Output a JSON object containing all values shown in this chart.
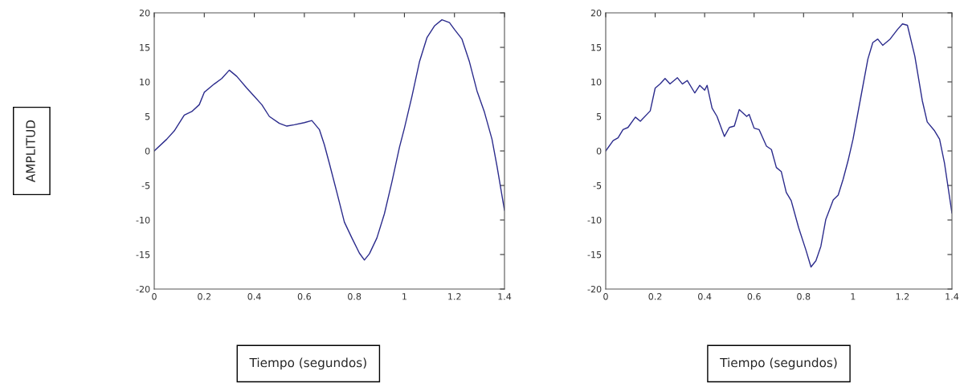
{
  "chart_data": [
    {
      "type": "line",
      "ylabel": "AMPLITUD",
      "xlabel": "Tiempo (segundos)",
      "xlim": [
        0,
        1.4
      ],
      "ylim": [
        -20,
        20
      ],
      "xticks": [
        0,
        0.2,
        0.4,
        0.6,
        0.8,
        1,
        1.2,
        1.4
      ],
      "yticks": [
        -20,
        -15,
        -10,
        -5,
        0,
        5,
        10,
        15,
        20
      ],
      "grid": false,
      "x": [
        0,
        0.05,
        0.08,
        0.12,
        0.15,
        0.18,
        0.2,
        0.24,
        0.27,
        0.3,
        0.33,
        0.37,
        0.4,
        0.43,
        0.46,
        0.5,
        0.53,
        0.56,
        0.6,
        0.63,
        0.66,
        0.68,
        0.7,
        0.73,
        0.76,
        0.79,
        0.82,
        0.84,
        0.86,
        0.89,
        0.92,
        0.95,
        0.98,
        1.0,
        1.03,
        1.06,
        1.09,
        1.12,
        1.15,
        1.18,
        1.2,
        1.23,
        1.26,
        1.29,
        1.32,
        1.35,
        1.37,
        1.4
      ],
      "series": [
        {
          "color": "#2b2b8c",
          "values": [
            0,
            1.7,
            2.9,
            5.2,
            5.7,
            6.7,
            8.5,
            9.7,
            10.5,
            11.7,
            10.8,
            9.1,
            7.9,
            6.7,
            5.0,
            4.0,
            3.6,
            3.8,
            4.1,
            4.4,
            3.1,
            0.9,
            -1.8,
            -6.0,
            -10.3,
            -12.6,
            -14.8,
            -15.8,
            -14.9,
            -12.6,
            -9.1,
            -4.5,
            0.5,
            3.3,
            7.9,
            12.9,
            16.4,
            18.1,
            19.0,
            18.6,
            17.6,
            16.2,
            12.9,
            8.7,
            5.6,
            1.7,
            -2.2,
            -8.6
          ]
        }
      ]
    },
    {
      "type": "line",
      "xlabel": "Tiempo (segundos)",
      "xlim": [
        0,
        1.4
      ],
      "ylim": [
        -20,
        20
      ],
      "xticks": [
        0,
        0.2,
        0.4,
        0.6,
        0.8,
        1,
        1.2,
        1.4
      ],
      "yticks": [
        -20,
        -15,
        -10,
        -5,
        0,
        5,
        10,
        15,
        20
      ],
      "grid": false,
      "x": [
        0,
        0.03,
        0.05,
        0.07,
        0.09,
        0.12,
        0.14,
        0.18,
        0.2,
        0.22,
        0.24,
        0.26,
        0.29,
        0.31,
        0.33,
        0.36,
        0.38,
        0.4,
        0.41,
        0.43,
        0.45,
        0.48,
        0.5,
        0.52,
        0.54,
        0.57,
        0.58,
        0.6,
        0.62,
        0.65,
        0.67,
        0.69,
        0.71,
        0.73,
        0.75,
        0.78,
        0.81,
        0.83,
        0.85,
        0.87,
        0.89,
        0.92,
        0.94,
        0.96,
        0.98,
        1.0,
        1.03,
        1.06,
        1.08,
        1.1,
        1.12,
        1.15,
        1.18,
        1.2,
        1.22,
        1.25,
        1.28,
        1.3,
        1.33,
        1.35,
        1.37,
        1.4
      ],
      "series": [
        {
          "color": "#2b2b8c",
          "values": [
            0,
            1.5,
            1.9,
            3.1,
            3.4,
            4.9,
            4.3,
            5.8,
            9.1,
            9.7,
            10.5,
            9.7,
            10.6,
            9.7,
            10.2,
            8.4,
            9.5,
            8.8,
            9.5,
            6.2,
            5.0,
            2.1,
            3.4,
            3.6,
            6.0,
            5.0,
            5.3,
            3.3,
            3.1,
            0.7,
            0.2,
            -2.4,
            -3.0,
            -6.0,
            -7.2,
            -11.1,
            -14.4,
            -16.8,
            -15.9,
            -13.8,
            -9.9,
            -7.1,
            -6.4,
            -4.1,
            -1.4,
            1.7,
            7.5,
            13.3,
            15.7,
            16.2,
            15.3,
            16.2,
            17.6,
            18.4,
            18.2,
            13.7,
            7.3,
            4.2,
            2.9,
            1.7,
            -1.8,
            -9.0
          ]
        }
      ]
    }
  ]
}
